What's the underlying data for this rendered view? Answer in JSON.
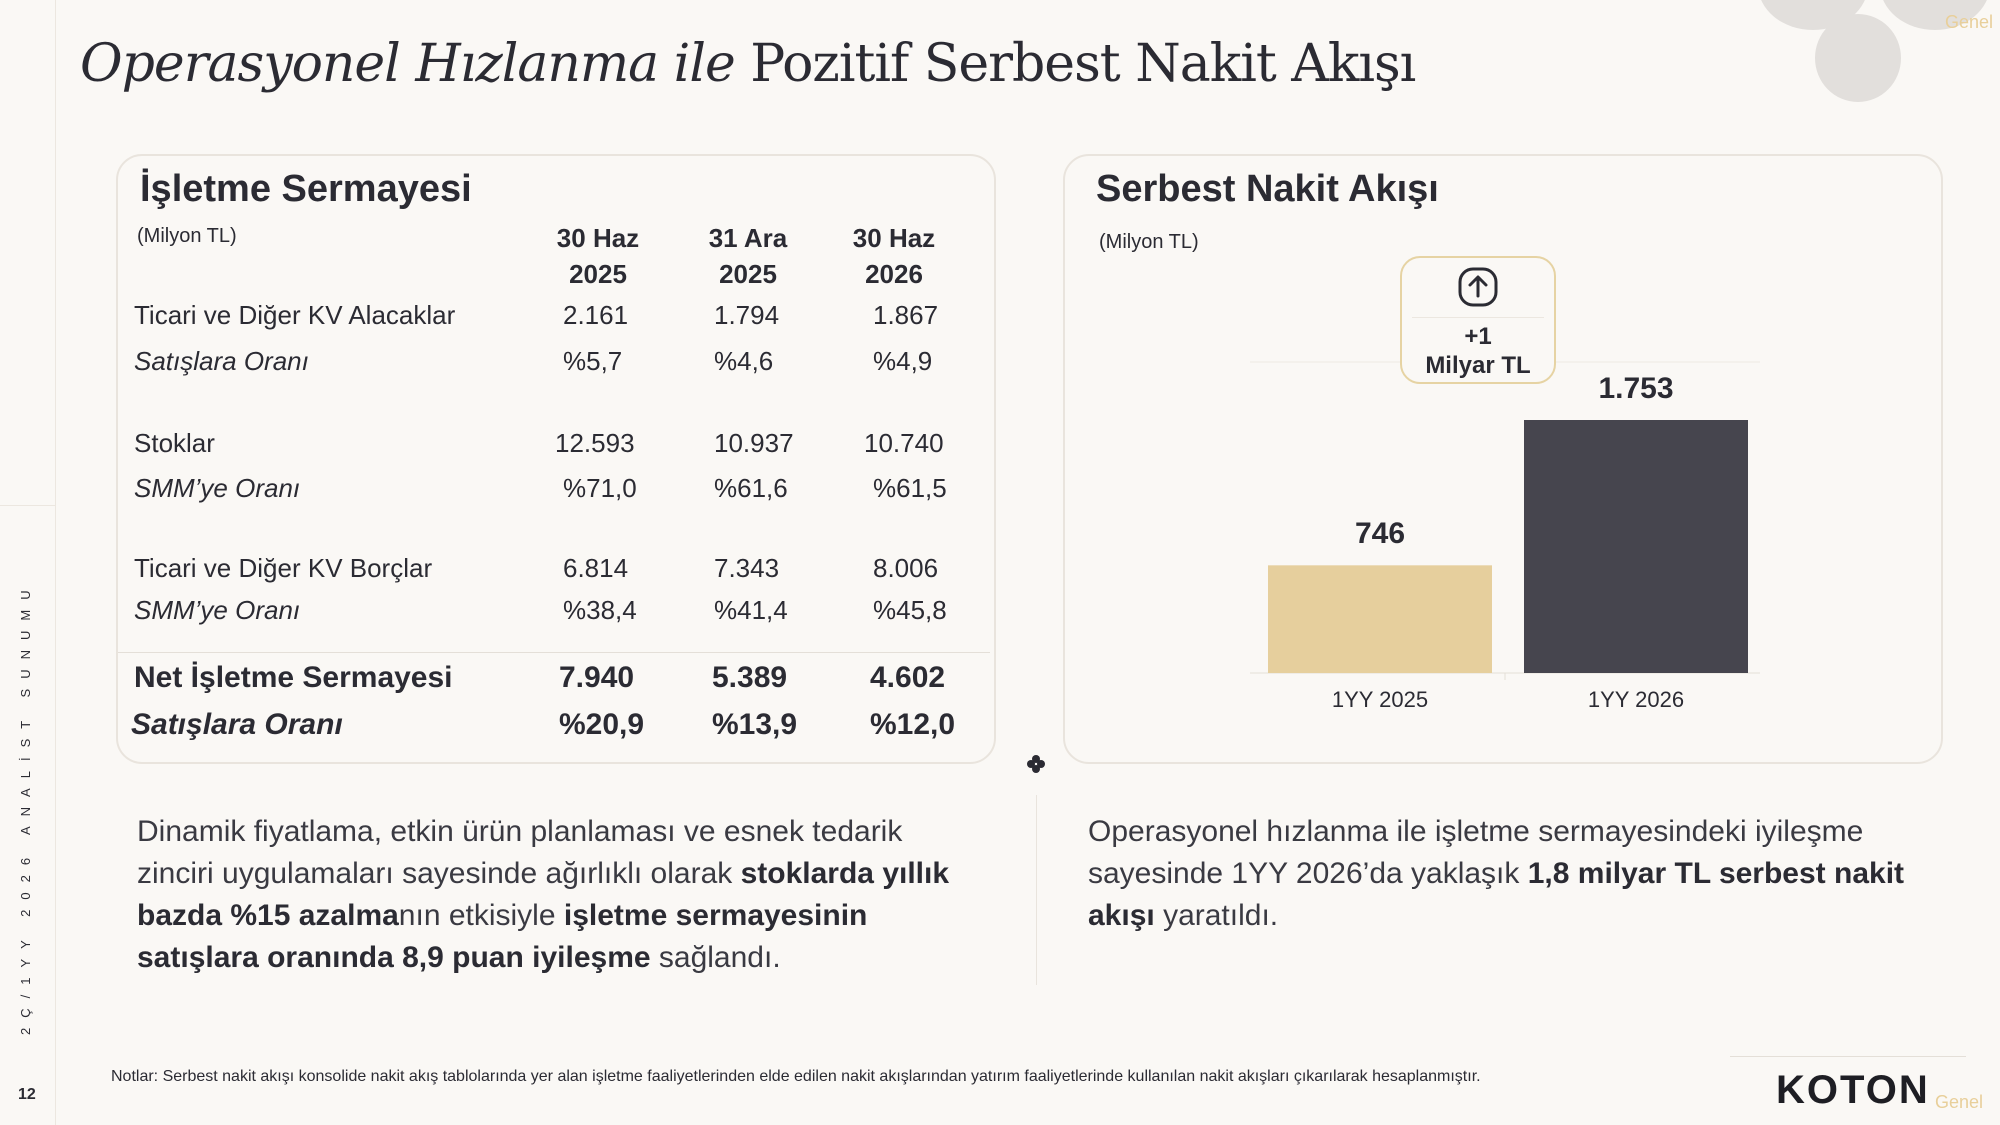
{
  "header": {
    "title_italic": "Operasyonel Hızlanma ile",
    "title_rest": " Pozitif Serbest Nakit Akışı",
    "tag_top": "Genel",
    "tag_bottom": "Genel"
  },
  "sidebar": {
    "vertical_text": "2Ç/1YY 2026 ANALİST SUNUMU",
    "page_number": "12"
  },
  "working_capital": {
    "title": "İşletme Sermayesi",
    "unit": "(Milyon TL)",
    "columns": [
      {
        "line1": "30 Haz",
        "line2": "2025"
      },
      {
        "line1": "31 Ara",
        "line2": "2025"
      },
      {
        "line1": "30 Haz",
        "line2": "2026"
      }
    ],
    "rows": [
      {
        "label": "Ticari ve Diğer KV Alacaklar",
        "values": [
          "2.161",
          "1.794",
          "1.867"
        ]
      },
      {
        "label": "Satışlara Oranı",
        "values": [
          "%5,7",
          "%4,6",
          "%4,9"
        ]
      },
      {
        "label": "Stoklar",
        "values": [
          "12.593",
          "10.937",
          "10.740"
        ]
      },
      {
        "label": "SMM’ye Oranı",
        "values": [
          "%71,0",
          "%61,6",
          "%61,5"
        ]
      },
      {
        "label": "Ticari ve Diğer KV Borçlar",
        "values": [
          "6.814",
          "7.343",
          "8.006"
        ]
      },
      {
        "label": "SMM’ye Oranı",
        "values": [
          "%38,4",
          "%41,4",
          "%45,8"
        ]
      }
    ],
    "totals": [
      {
        "label": "Net İşletme Sermayesi",
        "values": [
          "7.940",
          "5.389",
          "4.602"
        ]
      },
      {
        "label": "Satışlara Oranı",
        "values": [
          "%20,9",
          "%13,9",
          "%12,0"
        ]
      }
    ]
  },
  "fcf": {
    "title": "Serbest Nakit Akışı",
    "unit": "(Milyon TL)",
    "callout_icon": "arrow-up-circle-icon",
    "callout_line1": "+1",
    "callout_line2": "Milyar TL"
  },
  "chart_data": {
    "type": "bar",
    "categories": [
      "1YY 2025",
      "1YY 2026"
    ],
    "values": [
      746,
      1753
    ],
    "value_labels": [
      "746",
      "1.753"
    ],
    "colors": [
      "#e6cf9d",
      "#46454e"
    ],
    "ylim": [
      0,
      1753
    ],
    "grid": false,
    "title": "",
    "xlabel": "",
    "ylabel": ""
  },
  "text": {
    "left_para_1": "Dinamik fiyatlama, etkin ürün planlaması ve esnek tedarik zinciri uygulamaları sayesinde ağırlıklı olarak ",
    "left_bold_1": "stoklarda yıllık bazda %15 azalma",
    "left_para_2": "nın etkisiyle ",
    "left_bold_2": "işletme sermayesinin satışlara oranında 8,9 puan iyileşme",
    "left_para_3": " sağlandı.",
    "right_para_1": "Operasyonel hızlanma ile işletme sermayesindeki iyileşme sayesinde 1YY 2026’da yaklaşık ",
    "right_bold_1": "1,8 milyar TL serbest nakit akışı",
    "right_para_2": " yaratıldı."
  },
  "footer": {
    "note": "Notlar: Serbest nakit akışı konsolide nakit akış tablolarında yer alan işletme faaliyetlerinden elde edilen nakit akışlarından yatırım faaliyetlerinde kullanılan nakit akışları çıkarılarak hesaplanmıştır.",
    "logo": "KOTON"
  },
  "colors": {
    "background": "#faf8f5",
    "gold": "#e6cf9d",
    "dark": "#46454e",
    "text": "#2b2b33"
  }
}
